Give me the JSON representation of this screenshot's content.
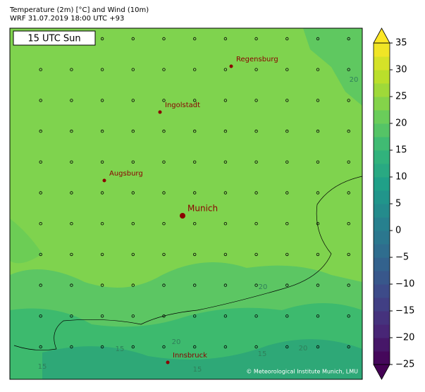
{
  "header": {
    "title": "Temperature (2m) [°C] and Wind (10m)",
    "subtitle": "WRF 31.07.2019 18:00 UTC +93"
  },
  "map": {
    "time_label": "15 UTC Sun",
    "cities": [
      {
        "label": "Regensburg"
      },
      {
        "label": "Ingolstadt"
      },
      {
        "label": "Augsburg"
      },
      {
        "label": "Munich"
      },
      {
        "label": "Innsbruck"
      }
    ],
    "contour_labels": [
      "20",
      "20",
      "15",
      "20",
      "15",
      "20",
      "15",
      "15"
    ],
    "copyright": "© Meteorological Institute Munich, LMU"
  },
  "colorbar": {
    "range": [
      -25,
      35
    ],
    "ticks": [
      {
        "value": -25,
        "label": "−25"
      },
      {
        "value": -20,
        "label": "−20"
      },
      {
        "value": -15,
        "label": "−15"
      },
      {
        "value": -10,
        "label": "−10"
      },
      {
        "value": -5,
        "label": "−5"
      },
      0,
      5,
      10,
      15,
      20,
      25,
      30,
      35
    ],
    "colors": [
      "#440154",
      "#482878",
      "#3e4989",
      "#31688e",
      "#26828e",
      "#1f9e89",
      "#35b779",
      "#6ece58",
      "#b5de2b",
      "#fde725"
    ]
  }
}
